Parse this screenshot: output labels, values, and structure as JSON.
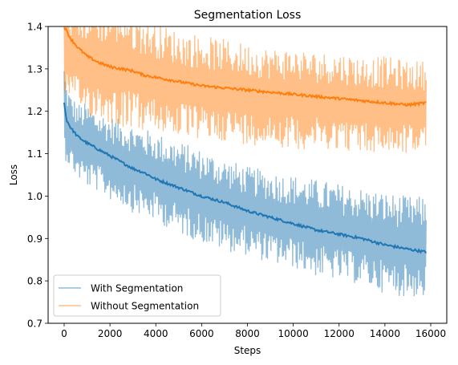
{
  "chart_data": {
    "type": "line",
    "title": "Segmentation Loss",
    "xlabel": "Steps",
    "ylabel": "Loss",
    "xlim": [
      -700,
      16700
    ],
    "ylim": [
      0.7,
      1.4
    ],
    "xticks": [
      0,
      2000,
      4000,
      6000,
      8000,
      10000,
      12000,
      14000,
      16000
    ],
    "yticks": [
      0.7,
      0.8,
      0.9,
      1.0,
      1.1,
      1.2,
      1.3,
      1.4
    ],
    "grid": false,
    "legend_position": "lower-left",
    "series": [
      {
        "name": "With Segmentation",
        "color": "#1f77b4",
        "raw_band_opacity": 0.5,
        "x": [
          0,
          100,
          300,
          600,
          1000,
          1500,
          2000,
          2500,
          3000,
          3500,
          4000,
          5000,
          6000,
          7000,
          8000,
          9000,
          10000,
          11000,
          12000,
          13000,
          14000,
          15000,
          15800
        ],
        "smooth": [
          1.22,
          1.18,
          1.16,
          1.14,
          1.125,
          1.11,
          1.095,
          1.08,
          1.065,
          1.055,
          1.04,
          1.02,
          1.0,
          0.985,
          0.965,
          0.95,
          0.935,
          0.92,
          0.91,
          0.9,
          0.885,
          0.875,
          0.868
        ],
        "raw_high": [
          1.32,
          1.27,
          1.24,
          1.22,
          1.22,
          1.2,
          1.19,
          1.18,
          1.17,
          1.16,
          1.15,
          1.13,
          1.11,
          1.09,
          1.07,
          1.06,
          1.05,
          1.04,
          1.03,
          1.02,
          1.01,
          1.0,
          1.0
        ],
        "raw_low": [
          1.09,
          1.08,
          1.06,
          1.04,
          1.02,
          1.01,
          0.99,
          0.98,
          0.96,
          0.95,
          0.94,
          0.91,
          0.89,
          0.87,
          0.86,
          0.84,
          0.83,
          0.81,
          0.8,
          0.79,
          0.77,
          0.76,
          0.76
        ]
      },
      {
        "name": "Without Segmentation",
        "color": "#ff7f0e",
        "raw_band_opacity": 0.5,
        "x": [
          0,
          100,
          300,
          600,
          1000,
          1500,
          2000,
          2500,
          3000,
          3500,
          4000,
          5000,
          6000,
          7000,
          8000,
          9000,
          10000,
          11000,
          12000,
          13000,
          14000,
          15000,
          15800
        ],
        "smooth": [
          1.4,
          1.39,
          1.37,
          1.35,
          1.33,
          1.315,
          1.305,
          1.3,
          1.295,
          1.285,
          1.28,
          1.27,
          1.26,
          1.255,
          1.25,
          1.245,
          1.24,
          1.235,
          1.23,
          1.225,
          1.22,
          1.215,
          1.22
        ],
        "raw_high": [
          1.45,
          1.45,
          1.45,
          1.45,
          1.45,
          1.45,
          1.45,
          1.45,
          1.43,
          1.42,
          1.41,
          1.39,
          1.38,
          1.37,
          1.36,
          1.35,
          1.35,
          1.34,
          1.34,
          1.33,
          1.33,
          1.32,
          1.32
        ],
        "raw_low": [
          1.24,
          1.23,
          1.21,
          1.2,
          1.19,
          1.18,
          1.17,
          1.16,
          1.16,
          1.15,
          1.15,
          1.14,
          1.13,
          1.13,
          1.12,
          1.12,
          1.11,
          1.11,
          1.11,
          1.1,
          1.1,
          1.1,
          1.1
        ]
      }
    ]
  }
}
